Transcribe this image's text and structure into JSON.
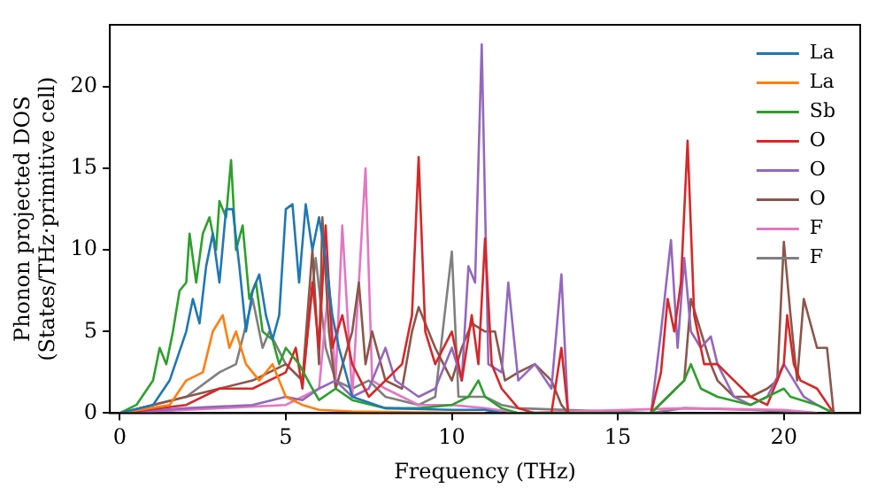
{
  "chart_data": {
    "type": "line",
    "xlabel": "Frequency (THz)",
    "ylabel": "Phonon projected DOS\n(States/THz·primitive cell)",
    "xlim": [
      -0.3,
      22.3
    ],
    "ylim": [
      0,
      23.8
    ],
    "xticks": [
      0,
      5,
      10,
      15,
      20
    ],
    "yticks": [
      0,
      5,
      10,
      15,
      20
    ],
    "grid": false,
    "legend": "top right",
    "marker": "none",
    "line_style": "solid",
    "series": [
      {
        "name": "La",
        "color": "#1f77b4",
        "x": [
          0,
          1,
          1.5,
          2,
          2.2,
          2.4,
          2.6,
          2.8,
          3,
          3.2,
          3.4,
          3.6,
          3.8,
          4,
          4.2,
          4.4,
          4.6,
          4.8,
          5,
          5.2,
          5.4,
          5.6,
          5.8,
          6,
          6.2,
          6.4,
          6.6,
          7,
          8,
          10,
          11,
          11.5
        ],
        "values": [
          0,
          0.5,
          2,
          5,
          7,
          5.5,
          9,
          11,
          8,
          12.5,
          12.5,
          9,
          5,
          7.5,
          8.5,
          6,
          4.5,
          6,
          12.5,
          12.8,
          8,
          12.8,
          10,
          12,
          9.5,
          6,
          4,
          1,
          0.3,
          0.2,
          0.2,
          0
        ]
      },
      {
        "name": "La",
        "color": "#ff7f0e",
        "x": [
          0,
          1.5,
          2,
          2.5,
          2.8,
          3.1,
          3.3,
          3.5,
          3.8,
          4.2,
          4.6,
          5,
          5.5,
          6,
          7,
          11
        ],
        "values": [
          0,
          0.5,
          2,
          2.5,
          5,
          6,
          4,
          5,
          3,
          2,
          3,
          1,
          0.5,
          0.2,
          0.1,
          0
        ]
      },
      {
        "name": "Sb",
        "color": "#2ca02c",
        "x": [
          0,
          0.5,
          1,
          1.2,
          1.4,
          1.6,
          1.8,
          2,
          2.1,
          2.3,
          2.5,
          2.7,
          2.9,
          3,
          3.2,
          3.35,
          3.5,
          3.7,
          3.9,
          4.1,
          4.3,
          4.6,
          4.8,
          5,
          5.4,
          5.8,
          6,
          6.5,
          7,
          8,
          9,
          10,
          10.5,
          10.8,
          11,
          11.5,
          12,
          16,
          16.5,
          17,
          17.2,
          17.5,
          18,
          19,
          20,
          20.2,
          21,
          21.5
        ],
        "values": [
          0,
          0.5,
          2,
          4,
          3,
          5,
          7.5,
          8,
          11,
          8,
          11,
          12,
          10,
          13,
          12,
          15.5,
          10,
          11.5,
          7,
          8,
          5,
          4.5,
          3,
          4,
          3,
          1.5,
          0.8,
          1.5,
          0.8,
          0.3,
          0.3,
          0.5,
          1,
          2,
          1,
          0.3,
          0,
          0,
          1,
          2,
          3,
          1.5,
          1,
          0.5,
          1.5,
          1,
          0.5,
          0
        ]
      },
      {
        "name": "O",
        "color": "#d62728",
        "x": [
          0,
          2,
          3,
          4,
          5,
          5.3,
          5.5,
          5.8,
          6,
          6.2,
          6.4,
          6.7,
          7,
          7.5,
          8,
          8.5,
          8.8,
          9,
          9.2,
          9.5,
          10,
          10.3,
          10.6,
          10.8,
          11,
          11.2,
          11.5,
          12,
          12.5,
          13,
          13.3,
          13.5,
          16,
          16.3,
          16.5,
          16.7,
          16.9,
          17.1,
          17.3,
          17.6,
          18,
          18.5,
          19,
          19.5,
          20,
          20.1,
          20.3,
          20.5,
          21,
          21.5
        ],
        "values": [
          0,
          0.5,
          1.5,
          1.5,
          2.5,
          4,
          1.5,
          8,
          4,
          11.5,
          4,
          6,
          3,
          1,
          2,
          3,
          6,
          15.7,
          5,
          3,
          5,
          2,
          6,
          3,
          10.7,
          3,
          1.5,
          0.3,
          0,
          0,
          4,
          0,
          0,
          2.5,
          7,
          5,
          8,
          16.7,
          6,
          3,
          3,
          2,
          1,
          0.5,
          3,
          6,
          3,
          2,
          1.5,
          0
        ]
      },
      {
        "name": "O",
        "color": "#9467bd",
        "x": [
          0,
          2,
          4,
          5,
          5.5,
          6,
          6.5,
          7,
          7.5,
          8,
          8.3,
          9,
          9.5,
          10,
          10.3,
          10.5,
          10.7,
          10.9,
          11.1,
          11.5,
          11.7,
          12,
          12.5,
          13,
          13.3,
          13.5,
          16,
          16.3,
          16.6,
          16.8,
          17,
          17.2,
          17.5,
          17.8,
          18,
          18.5,
          19,
          19.5,
          20,
          20.3,
          20.6,
          21,
          21.5
        ],
        "values": [
          0,
          0.3,
          0.5,
          1,
          0.8,
          1.5,
          2,
          1,
          1.5,
          4,
          2,
          1,
          1.5,
          4,
          2,
          9,
          8,
          22.6,
          3,
          2.5,
          8,
          2,
          3,
          1.5,
          8.5,
          0,
          0,
          5,
          10.6,
          4,
          9.5,
          5,
          4,
          4.7,
          3,
          1,
          0.5,
          1,
          3,
          2,
          1,
          0.5,
          0
        ]
      },
      {
        "name": "O",
        "color": "#8c564b",
        "x": [
          0,
          2,
          3,
          4,
          5,
          5.5,
          5.8,
          6,
          6.1,
          6.3,
          6.5,
          7,
          7.2,
          7.4,
          7.6,
          8,
          8.5,
          8.8,
          9,
          9.5,
          10,
          10.3,
          10.6,
          11,
          11.3,
          11.6,
          12,
          12.5,
          13,
          13.3,
          13.5,
          16,
          16.5,
          17,
          17.2,
          17.5,
          17.8,
          18,
          18.5,
          19,
          19.5,
          19.8,
          20,
          20.2,
          20.4,
          20.6,
          21,
          21.3,
          21.5
        ],
        "values": [
          0,
          1,
          1.5,
          2,
          3,
          2,
          10,
          3,
          12,
          5,
          1.5,
          5,
          8,
          3,
          5,
          2,
          1.5,
          5,
          6.5,
          4,
          2,
          4,
          5.5,
          5,
          5,
          2,
          2.5,
          3,
          2,
          0.5,
          0,
          0,
          1,
          2,
          7,
          5,
          3,
          2,
          1,
          1,
          1.5,
          2,
          10.5,
          6,
          2,
          7,
          4,
          4,
          0
        ]
      },
      {
        "name": "F",
        "color": "#e377c2",
        "x": [
          0,
          3,
          5,
          5.5,
          6,
          6.3,
          6.5,
          6.7,
          7,
          7.4,
          7.6,
          8,
          8.5,
          9,
          10,
          11,
          12,
          17,
          20,
          21
        ],
        "values": [
          0,
          0.3,
          0.5,
          1,
          1.5,
          8,
          2,
          11.5,
          1,
          15,
          2,
          1.5,
          1,
          0.5,
          0.5,
          0.3,
          0,
          0.3,
          0.2,
          0
        ]
      },
      {
        "name": "F",
        "color": "#7f7f7f",
        "x": [
          0,
          2,
          3,
          3.5,
          4,
          4.3,
          4.5,
          5,
          5.5,
          5.9,
          6.2,
          6.5,
          7,
          7.5,
          8,
          9,
          9.5,
          10,
          10.2,
          11,
          11.5,
          12,
          16,
          17,
          19,
          21
        ],
        "values": [
          0,
          1,
          2.5,
          3,
          7,
          4,
          5,
          3,
          2,
          9.5,
          4,
          2,
          1.5,
          2,
          1,
          0.5,
          1,
          9.9,
          1,
          1,
          0.5,
          0.3,
          0,
          0.3,
          0.2,
          0
        ]
      }
    ]
  }
}
